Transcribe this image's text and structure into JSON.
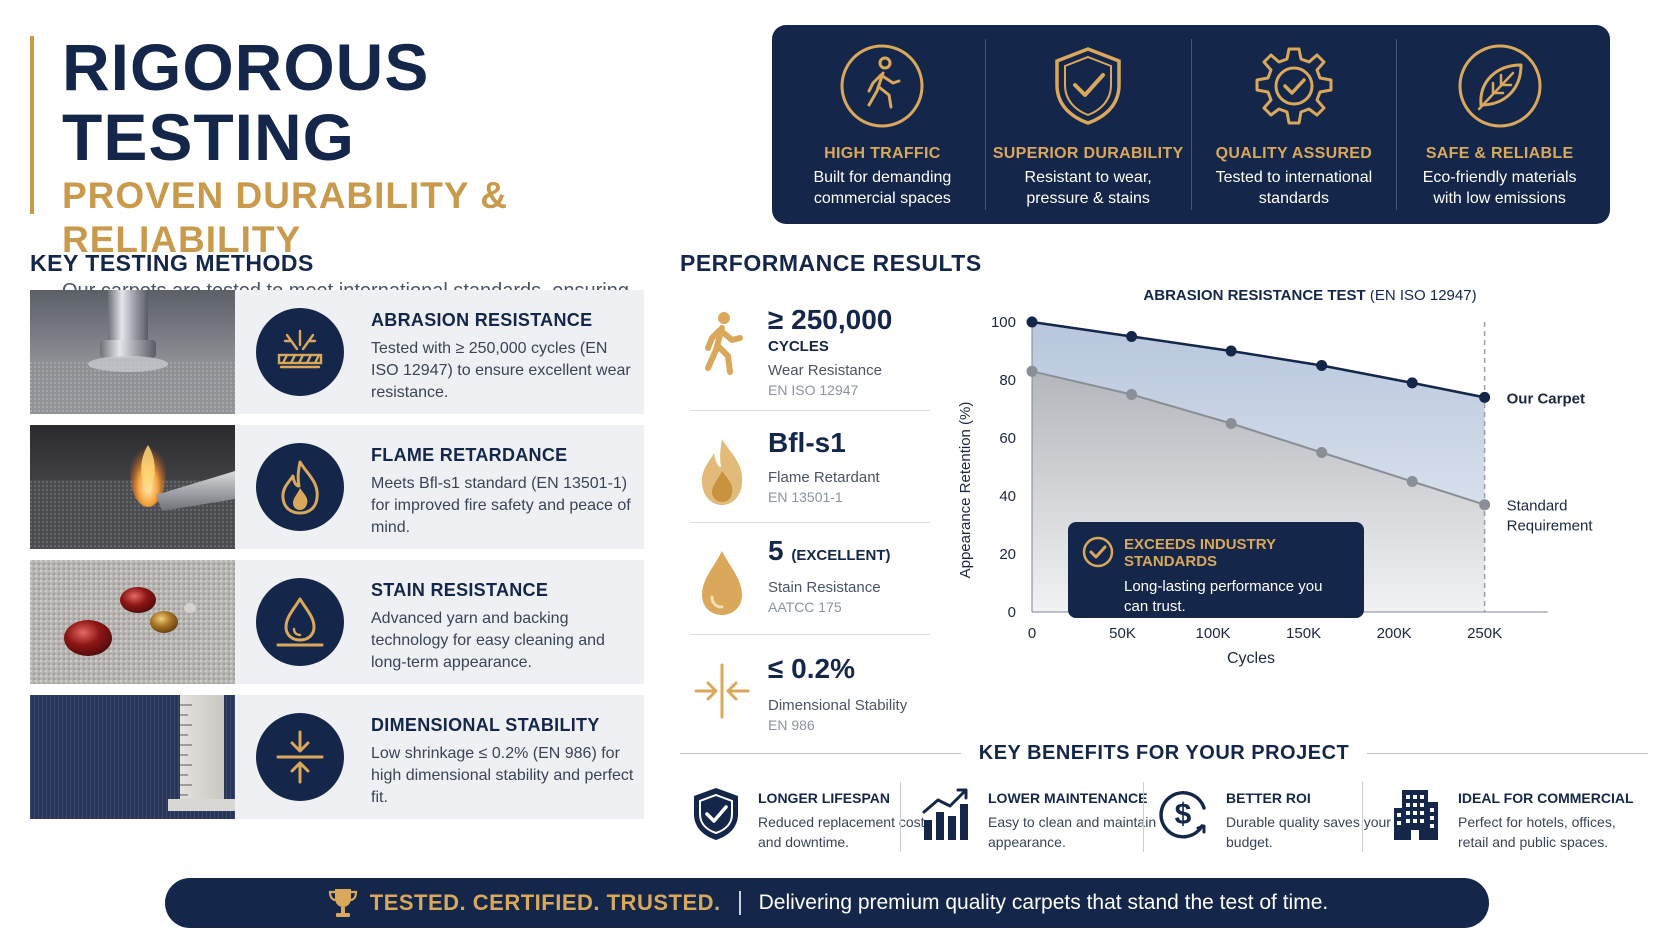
{
  "hero": {
    "title": "RIGOROUS TESTING",
    "subtitle": "PROVEN DURABILITY & RELIABILITY",
    "description": "Our carpets are tested to meet international standards, ensuring long-lasting performance in commercial environments."
  },
  "features": [
    {
      "icon": "walking-person-icon",
      "title": "HIGH TRAFFIC",
      "text": "Built for demanding commercial spaces"
    },
    {
      "icon": "shield-check-icon",
      "title": "SUPERIOR DURABILITY",
      "text": "Resistant to wear, pressure & stains"
    },
    {
      "icon": "gear-check-icon",
      "title": "QUALITY ASSURED",
      "text": "Tested to international standards"
    },
    {
      "icon": "leaf-icon",
      "title": "SAFE & RELIABLE",
      "text": "Eco-friendly materials with low emissions"
    }
  ],
  "methods": {
    "heading": "KEY TESTING METHODS",
    "items": [
      {
        "icon": "abrasion-icon",
        "photo": "abrasion-test-photo",
        "title": "ABRASION RESISTANCE",
        "text": "Tested with ≥ 250,000 cycles (EN ISO 12947) to ensure excellent wear resistance."
      },
      {
        "icon": "flame-icon",
        "photo": "flame-test-photo",
        "title": "FLAME RETARDANCE",
        "text": "Meets Bfl-s1 standard (EN 13501-1) for improved fire safety and peace of mind."
      },
      {
        "icon": "droplet-icon",
        "photo": "stain-test-photo",
        "title": "STAIN RESISTANCE",
        "text": "Advanced yarn and backing technology for easy cleaning and long-term appearance."
      },
      {
        "icon": "compress-arrows-icon",
        "photo": "ruler-test-photo",
        "title": "DIMENSIONAL STABILITY",
        "text": "Low shrinkage ≤ 0.2% (EN 986) for high dimensional stability and perfect fit."
      }
    ]
  },
  "performance": {
    "heading": "PERFORMANCE RESULTS",
    "stats": [
      {
        "icon": "walking-person-icon",
        "value": "≥ 250,000",
        "unit": "CYCLES",
        "label": "Wear Resistance",
        "standard": "EN ISO 12947"
      },
      {
        "icon": "flame-icon",
        "value": "Bfl-s1",
        "unit": "",
        "label": "Flame Retardant",
        "standard": "EN 13501-1"
      },
      {
        "icon": "droplet-icon",
        "value": "5",
        "unit": "(EXCELLENT)",
        "label": "Stain Resistance",
        "standard": "AATCC 175"
      },
      {
        "icon": "compress-arrows-icon",
        "value": "≤ 0.2%",
        "unit": "",
        "label": "Dimensional Stability",
        "standard": "EN 986"
      }
    ]
  },
  "chart_data": {
    "type": "line",
    "title": "ABRASION RESISTANCE TEST",
    "title_suffix": "(EN ISO 12947)",
    "xlabel": "Cycles",
    "ylabel": "Appearance Retention (%)",
    "x": [
      0,
      55000,
      110000,
      160000,
      210000,
      250000
    ],
    "xticks": [
      "0",
      "50K",
      "100K",
      "150K",
      "200K",
      "250K"
    ],
    "xtick_values": [
      0,
      50000,
      100000,
      150000,
      200000,
      250000
    ],
    "yticks": [
      "0",
      "20",
      "40",
      "60",
      "80",
      "100"
    ],
    "ytick_values": [
      0,
      20,
      40,
      60,
      80,
      100
    ],
    "xlim": [
      0,
      285000
    ],
    "ylim": [
      0,
      100
    ],
    "reference_line_x": 250000,
    "series": [
      {
        "name": "Our Carpet",
        "values": [
          100,
          95,
          90,
          85,
          79,
          74
        ],
        "color": "#14264a"
      },
      {
        "name": "Standard Requirement",
        "values": [
          83,
          75,
          65,
          55,
          45,
          37
        ],
        "color": "#8a8f97"
      }
    ],
    "legend": "right"
  },
  "callout": {
    "icon": "check-circle-icon",
    "title": "EXCEEDS INDUSTRY STANDARDS",
    "text": "Long-lasting performance you can trust."
  },
  "benefits": {
    "heading": "KEY BENEFITS FOR YOUR PROJECT",
    "items": [
      {
        "icon": "shield-check-icon",
        "title": "LONGER LIFESPAN",
        "text": "Reduced replacement cost and downtime."
      },
      {
        "icon": "bar-chart-icon",
        "title": "LOWER MAINTENANCE",
        "text": "Easy to clean and maintain appearance."
      },
      {
        "icon": "dollar-circle-icon",
        "title": "BETTER ROI",
        "text": "Durable quality saves your budget."
      },
      {
        "icon": "building-icon",
        "title": "IDEAL FOR COMMERCIAL",
        "text": "Perfect for hotels, offices, retail and public spaces."
      }
    ]
  },
  "footer": {
    "icon": "trophy-icon",
    "strong": "TESTED. CERTIFIED. TRUSTED.",
    "text": "Delivering premium quality carpets that stand the test of time."
  },
  "colors": {
    "navy": "#14264a",
    "gold": "#c99a4c",
    "gray_series": "#8a8f97"
  }
}
